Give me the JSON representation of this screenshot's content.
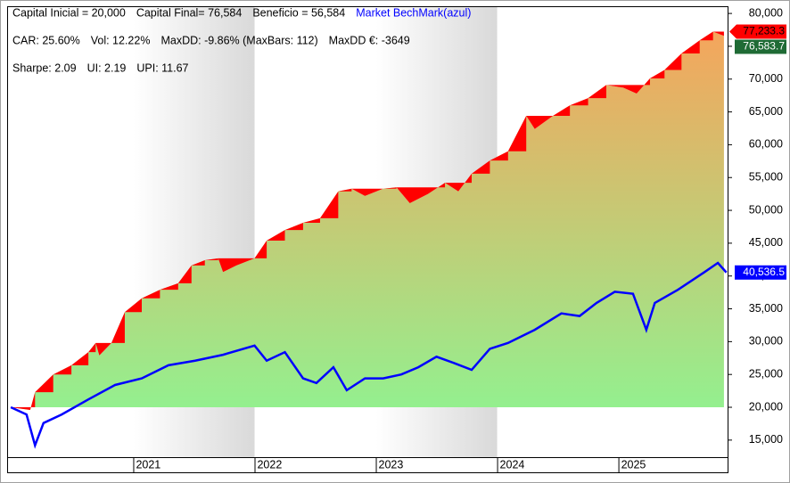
{
  "chart_data": {
    "type": "equity",
    "annotations": [
      [
        "Capital Inicial = 20,000",
        "Capital Final= 76,584",
        "Beneficio = 56,584",
        "Market BechMark(azul)"
      ],
      [
        "CAR: 25.60%",
        "Vol: 12.22%",
        "MaxDD: -9.86% (MaxBars: 112)",
        "MaxDD €: -3649"
      ],
      [
        "Sharpe: 2.09",
        "UI: 2.19",
        "UPI: 11.67"
      ]
    ],
    "series": [
      {
        "name": "Equity",
        "gradient": [
          "#f5a55c",
          "#93f08f"
        ],
        "drawdown_color": "#ff0000",
        "label_color": "#1f6b35",
        "peak_color": "#ff0000",
        "x": [
          2019.99,
          2020.15,
          2020.19,
          2020.34,
          2020.49,
          2020.63,
          2020.69,
          2020.72,
          2020.82,
          2020.93,
          2021.07,
          2021.22,
          2021.37,
          2021.48,
          2021.59,
          2021.7,
          2021.74,
          2021.85,
          2022.0,
          2022.1,
          2022.25,
          2022.4,
          2022.54,
          2022.69,
          2022.8,
          2022.91,
          2023.06,
          2023.17,
          2023.28,
          2023.43,
          2023.57,
          2023.68,
          2023.79,
          2023.94,
          2024.09,
          2024.24,
          2024.31,
          2024.46,
          2024.6,
          2024.75,
          2024.9,
          2025.04,
          2025.15,
          2025.26,
          2025.38,
          2025.52,
          2025.67,
          2025.78,
          2025.87
        ],
        "values": [
          20000,
          19600,
          22300,
          25000,
          26400,
          28400,
          29800,
          27900,
          29800,
          34500,
          36600,
          37900,
          38900,
          41600,
          42400,
          42700,
          40600,
          41600,
          42700,
          45400,
          47000,
          48100,
          48800,
          52900,
          53300,
          52200,
          53300,
          53500,
          51100,
          52500,
          54200,
          52900,
          55600,
          57600,
          59000,
          64400,
          62400,
          64400,
          66000,
          67100,
          69100,
          68700,
          67800,
          70100,
          71400,
          73900,
          75900,
          77233.3,
          76583.7
        ],
        "peak_label": "77,233.3",
        "end_label": "76,583.7"
      },
      {
        "name": "Market BechMark",
        "color": "#0000ff",
        "x": [
          2019.99,
          2020.12,
          2020.19,
          2020.26,
          2020.41,
          2020.63,
          2020.85,
          2021.07,
          2021.29,
          2021.51,
          2021.74,
          2022.0,
          2022.1,
          2022.25,
          2022.4,
          2022.51,
          2022.65,
          2022.76,
          2022.91,
          2023.06,
          2023.21,
          2023.35,
          2023.5,
          2023.65,
          2023.79,
          2023.94,
          2024.09,
          2024.31,
          2024.53,
          2024.68,
          2024.82,
          2024.97,
          2025.12,
          2025.23,
          2025.3,
          2025.49,
          2025.71,
          2025.82,
          2025.89
        ],
        "values": [
          20000,
          18900,
          14200,
          17600,
          18900,
          21200,
          23400,
          24400,
          26400,
          27100,
          28000,
          29400,
          27100,
          28400,
          24400,
          23700,
          26100,
          22600,
          24400,
          24400,
          25000,
          26100,
          27700,
          26700,
          25700,
          28900,
          29800,
          31800,
          34300,
          33900,
          35900,
          37600,
          37300,
          31800,
          35900,
          37900,
          40600,
          42000,
          40536.5
        ],
        "end_label": "40,536.5"
      }
    ],
    "xlim": [
      2019.96,
      2025.9
    ],
    "xticks": [
      2021,
      2022,
      2023,
      2024,
      2025
    ],
    "ylim": [
      12400,
      81100
    ],
    "yticks": [
      {
        "value": 15000,
        "label": "15,000"
      },
      {
        "value": 20000,
        "label": "20,000"
      },
      {
        "value": 25000,
        "label": "25,000"
      },
      {
        "value": 30000,
        "label": "30,000"
      },
      {
        "value": 35000,
        "label": "35,000"
      },
      {
        "value": 40000,
        "label": "40,000"
      },
      {
        "value": 45000,
        "label": "45,000"
      },
      {
        "value": 50000,
        "label": "50,000"
      },
      {
        "value": 55000,
        "label": "55,000"
      },
      {
        "value": 60000,
        "label": "60,000"
      },
      {
        "value": 65000,
        "label": "65,000"
      },
      {
        "value": 70000,
        "label": "70,000"
      },
      {
        "value": 75000,
        "label": "75,000"
      },
      {
        "value": 80000,
        "label": "80,000"
      }
    ],
    "year_shading": true
  }
}
